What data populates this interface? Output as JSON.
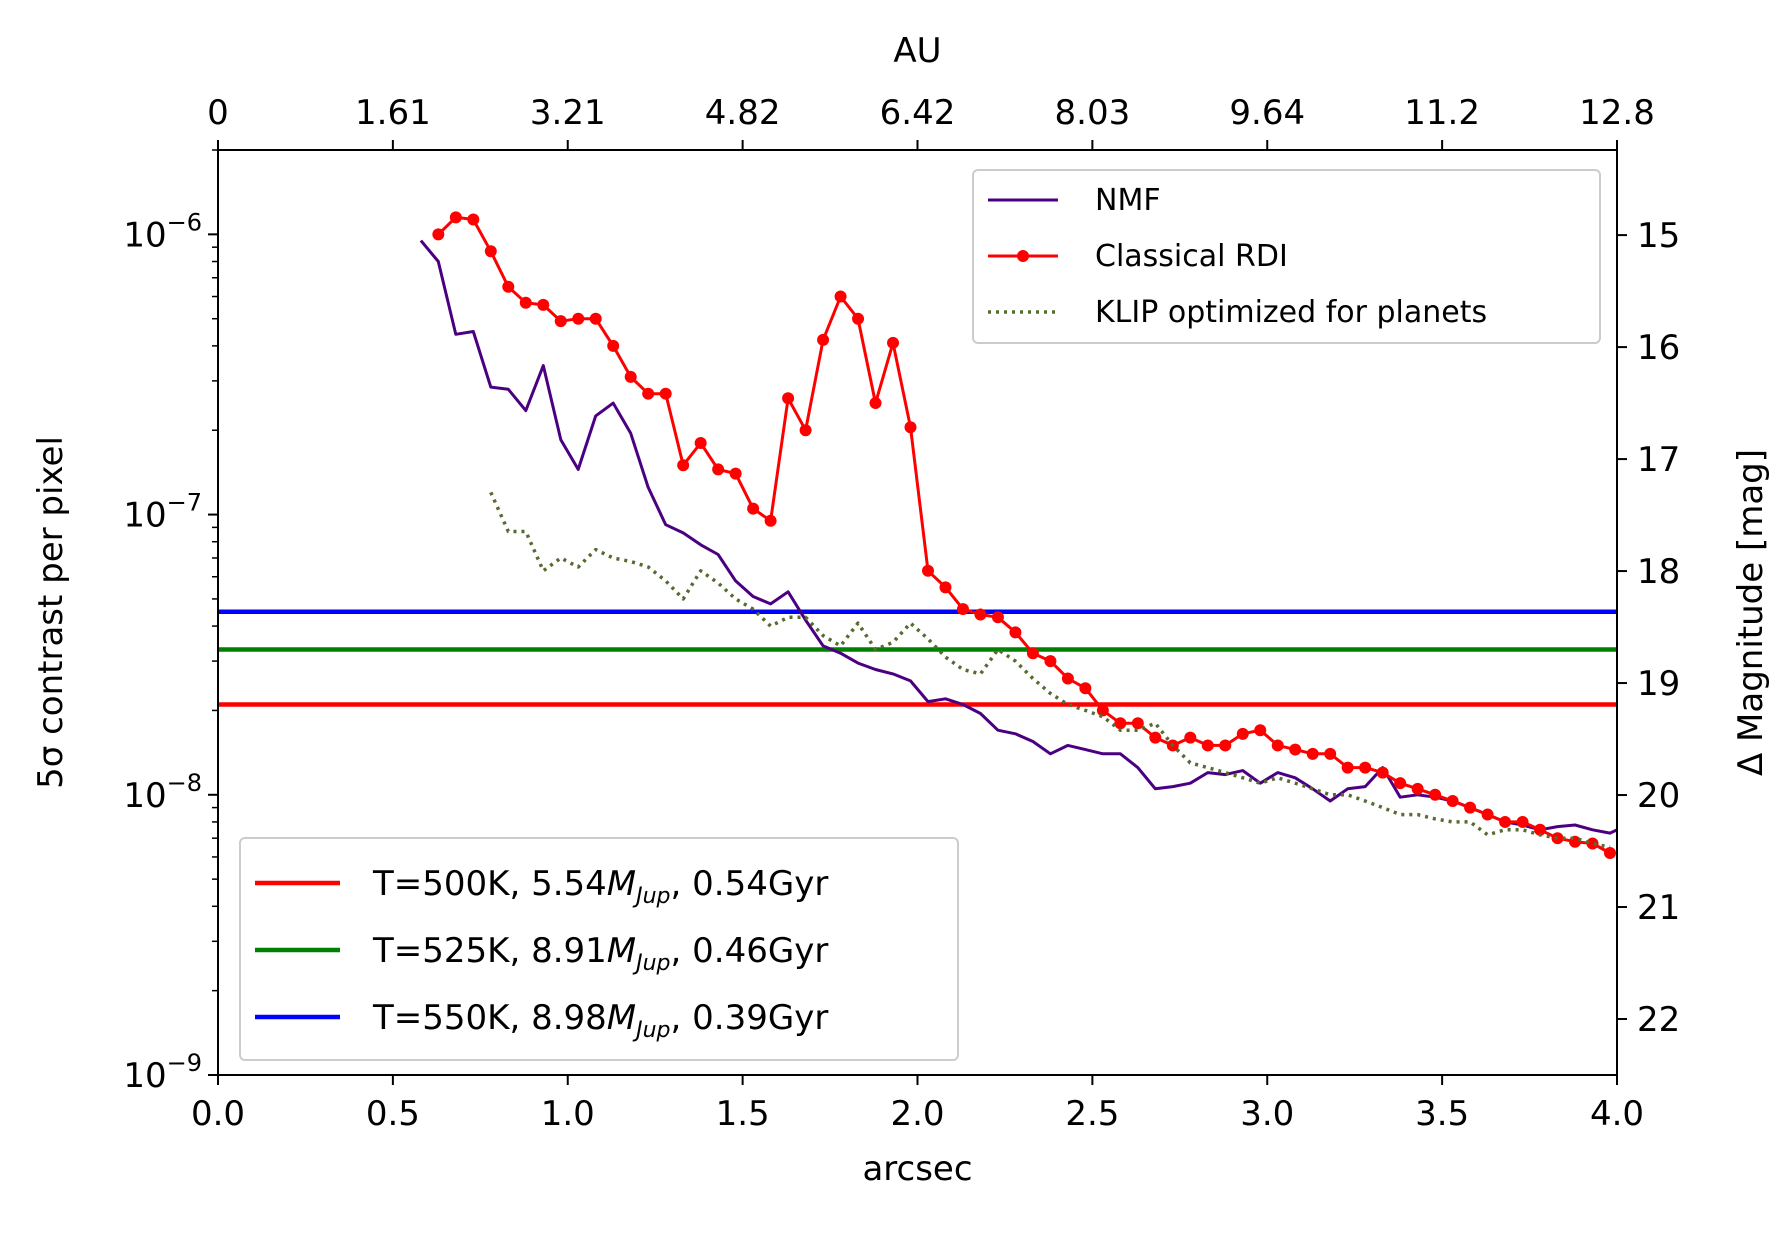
{
  "chart_data": {
    "type": "line",
    "title": "",
    "xlabel": "arcsec",
    "ylabel": "5σ contrast per pixel",
    "ylabel_right": "Δ Magnitude [mag]",
    "xlabel_top": "AU",
    "xlim": [
      0,
      4
    ],
    "ylim": [
      1e-09,
      2e-06
    ],
    "yscale": "log",
    "right_axis_range_mag": [
      14.24,
      22.5
    ],
    "x_ticks": [
      "0.0",
      "0.5",
      "1.0",
      "1.5",
      "2.0",
      "2.5",
      "3.0",
      "3.5",
      "4.0"
    ],
    "top_ticks": [
      "0",
      "1.61",
      "3.21",
      "4.82",
      "6.42",
      "8.03",
      "9.64",
      "11.2",
      "12.8"
    ],
    "y_ticks": [
      {
        "base": "10",
        "exp": "−6",
        "value": 1e-06
      },
      {
        "base": "10",
        "exp": "−7",
        "value": 1e-07
      },
      {
        "base": "10",
        "exp": "−8",
        "value": 1e-08
      },
      {
        "base": "10",
        "exp": "−9",
        "value": 1e-09
      }
    ],
    "right_ticks": [
      "15",
      "16",
      "17",
      "18",
      "19",
      "20",
      "21",
      "22"
    ],
    "series": [
      {
        "name": "NMF",
        "color": "#4b0082",
        "style": "solid",
        "x": [
          0.58,
          0.63,
          0.68,
          0.73,
          0.78,
          0.83,
          0.88,
          0.93,
          0.98,
          1.03,
          1.08,
          1.13,
          1.18,
          1.23,
          1.28,
          1.33,
          1.38,
          1.43,
          1.48,
          1.53,
          1.58,
          1.63,
          1.68,
          1.73,
          1.78,
          1.83,
          1.88,
          1.93,
          1.98,
          2.03,
          2.08,
          2.13,
          2.18,
          2.23,
          2.28,
          2.33,
          2.38,
          2.43,
          2.48,
          2.53,
          2.58,
          2.63,
          2.68,
          2.73,
          2.78,
          2.83,
          2.88,
          2.93,
          2.98,
          3.03,
          3.08,
          3.13,
          3.18,
          3.23,
          3.28,
          3.33,
          3.38,
          3.43,
          3.48,
          3.53,
          3.58,
          3.63,
          3.68,
          3.73,
          3.78,
          3.83,
          3.88,
          3.93,
          3.98,
          4.0
        ],
        "y": [
          9.5e-07,
          8e-07,
          4.4e-07,
          4.5e-07,
          2.85e-07,
          2.8e-07,
          2.35e-07,
          3.4e-07,
          1.85e-07,
          1.45e-07,
          2.25e-07,
          2.5e-07,
          1.95e-07,
          1.25e-07,
          9.2e-08,
          8.6e-08,
          7.8e-08,
          7.2e-08,
          5.8e-08,
          5.1e-08,
          4.8e-08,
          5.3e-08,
          4.2e-08,
          3.4e-08,
          3.2e-08,
          2.95e-08,
          2.8e-08,
          2.7e-08,
          2.55e-08,
          2.15e-08,
          2.2e-08,
          2.1e-08,
          1.95e-08,
          1.7e-08,
          1.65e-08,
          1.55e-08,
          1.4e-08,
          1.5e-08,
          1.45e-08,
          1.4e-08,
          1.4e-08,
          1.25e-08,
          1.05e-08,
          1.07e-08,
          1.1e-08,
          1.2e-08,
          1.18e-08,
          1.22e-08,
          1.1e-08,
          1.2e-08,
          1.15e-08,
          1.05e-08,
          9.5e-09,
          1.05e-08,
          1.07e-08,
          1.25e-08,
          9.8e-09,
          1e-08,
          9.8e-09,
          9.5e-09,
          9e-09,
          8.5e-09,
          8e-09,
          7.8e-09,
          7.5e-09,
          7.7e-09,
          7.8e-09,
          7.5e-09,
          7.3e-09,
          7.5e-09
        ]
      },
      {
        "name": "Classical RDI",
        "color": "#ff0000",
        "style": "solid-dots",
        "x": [
          0.63,
          0.68,
          0.73,
          0.78,
          0.83,
          0.88,
          0.93,
          0.98,
          1.03,
          1.08,
          1.13,
          1.18,
          1.23,
          1.28,
          1.33,
          1.38,
          1.43,
          1.48,
          1.53,
          1.58,
          1.63,
          1.68,
          1.73,
          1.78,
          1.83,
          1.88,
          1.93,
          1.98,
          2.03,
          2.08,
          2.13,
          2.18,
          2.23,
          2.28,
          2.33,
          2.38,
          2.43,
          2.48,
          2.53,
          2.58,
          2.63,
          2.68,
          2.73,
          2.78,
          2.83,
          2.88,
          2.93,
          2.98,
          3.03,
          3.08,
          3.13,
          3.18,
          3.23,
          3.28,
          3.33,
          3.38,
          3.43,
          3.48,
          3.53,
          3.58,
          3.63,
          3.68,
          3.73,
          3.78,
          3.83,
          3.88,
          3.93,
          3.98
        ],
        "y": [
          1e-06,
          1.15e-06,
          1.13e-06,
          8.7e-07,
          6.5e-07,
          5.7e-07,
          5.6e-07,
          4.9e-07,
          5e-07,
          5e-07,
          4e-07,
          3.1e-07,
          2.7e-07,
          2.7e-07,
          1.5e-07,
          1.8e-07,
          1.45e-07,
          1.4e-07,
          1.05e-07,
          9.5e-08,
          2.6e-07,
          2e-07,
          4.2e-07,
          6e-07,
          5e-07,
          2.5e-07,
          4.1e-07,
          2.05e-07,
          6.3e-08,
          5.5e-08,
          4.6e-08,
          4.4e-08,
          4.3e-08,
          3.8e-08,
          3.2e-08,
          3e-08,
          2.6e-08,
          2.4e-08,
          2e-08,
          1.8e-08,
          1.8e-08,
          1.6e-08,
          1.5e-08,
          1.6e-08,
          1.5e-08,
          1.5e-08,
          1.65e-08,
          1.7e-08,
          1.5e-08,
          1.45e-08,
          1.4e-08,
          1.4e-08,
          1.25e-08,
          1.25e-08,
          1.2e-08,
          1.1e-08,
          1.05e-08,
          1e-08,
          9.5e-09,
          9e-09,
          8.5e-09,
          8e-09,
          8e-09,
          7.5e-09,
          7e-09,
          6.8e-09,
          6.7e-09,
          6.2e-09
        ]
      },
      {
        "name": "KLIP optimized for planets",
        "color": "#556b2f",
        "style": "dotted",
        "x": [
          0.78,
          0.83,
          0.88,
          0.93,
          0.98,
          1.03,
          1.08,
          1.13,
          1.18,
          1.23,
          1.28,
          1.33,
          1.38,
          1.43,
          1.48,
          1.53,
          1.58,
          1.63,
          1.68,
          1.73,
          1.78,
          1.83,
          1.88,
          1.93,
          1.98,
          2.03,
          2.08,
          2.13,
          2.18,
          2.23,
          2.28,
          2.33,
          2.38,
          2.43,
          2.48,
          2.53,
          2.58,
          2.63,
          2.68,
          2.73,
          2.78,
          2.83,
          2.88,
          2.93,
          2.98,
          3.03,
          3.08,
          3.13,
          3.18,
          3.23,
          3.28,
          3.33,
          3.38,
          3.43,
          3.48,
          3.53,
          3.58,
          3.63,
          3.68,
          3.73,
          3.78,
          3.83,
          3.88,
          3.93,
          3.98
        ],
        "y": [
          1.2e-07,
          8.7e-08,
          8.7e-08,
          6.3e-08,
          7e-08,
          6.5e-08,
          7.5e-08,
          7e-08,
          6.8e-08,
          6.5e-08,
          5.8e-08,
          5e-08,
          6.3e-08,
          5.7e-08,
          5e-08,
          4.6e-08,
          4e-08,
          4.3e-08,
          4.3e-08,
          3.7e-08,
          3.4e-08,
          4.1e-08,
          3.3e-08,
          3.5e-08,
          4.1e-08,
          3.6e-08,
          3.1e-08,
          2.8e-08,
          2.7e-08,
          3.3e-08,
          3e-08,
          2.6e-08,
          2.3e-08,
          2.1e-08,
          2e-08,
          1.9e-08,
          1.7e-08,
          1.7e-08,
          1.8e-08,
          1.5e-08,
          1.3e-08,
          1.25e-08,
          1.2e-08,
          1.15e-08,
          1.1e-08,
          1.15e-08,
          1.1e-08,
          1.05e-08,
          1e-08,
          1e-08,
          9.5e-09,
          9e-09,
          8.5e-09,
          8.5e-09,
          8.2e-09,
          8e-09,
          8e-09,
          7.2e-09,
          7.5e-09,
          7.5e-09,
          7.2e-09,
          7e-09,
          7e-09,
          6.7e-09,
          6.5e-09
        ]
      }
    ],
    "hlines": [
      {
        "value": 2.1e-08,
        "color": "#ff0000",
        "label_prefix": "T=500K, 5.54",
        "label_suffix": ", 0.54Gyr"
      },
      {
        "value": 3.3e-08,
        "color": "#008000",
        "label_prefix": "T=525K, 8.91",
        "label_suffix": ", 0.46Gyr"
      },
      {
        "value": 4.5e-08,
        "color": "#0000ff",
        "label_prefix": "T=550K, 8.98",
        "label_suffix": ", 0.39Gyr"
      }
    ],
    "mass_symbol": "M",
    "mass_subscript": "Jup",
    "legend_series_position": "top-right",
    "legend_hlines_position": "bottom-left",
    "grid": false
  }
}
